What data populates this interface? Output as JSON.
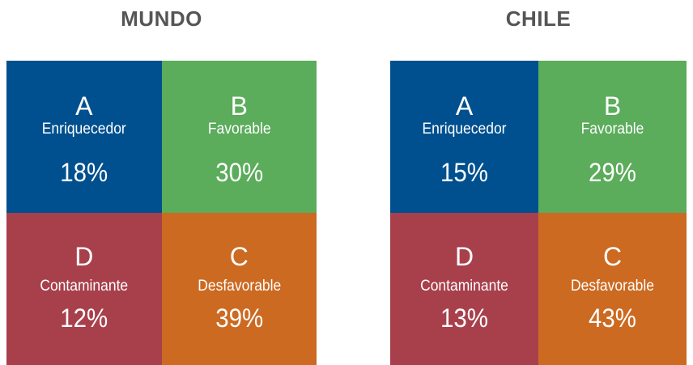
{
  "panels": [
    {
      "title": "MUNDO",
      "cells": [
        {
          "letter": "A",
          "label": "Enriquecedor",
          "value": "18%",
          "color": "#00508f"
        },
        {
          "letter": "B",
          "label": "Favorable",
          "value": "30%",
          "color": "#5bac5b"
        },
        {
          "letter": "D",
          "label": "Contaminante",
          "value": "12%",
          "color": "#a8404c"
        },
        {
          "letter": "C",
          "label": "Desfavorable",
          "value": "39%",
          "color": "#cc6a21"
        }
      ]
    },
    {
      "title": "CHILE",
      "cells": [
        {
          "letter": "A",
          "label": "Enriquecedor",
          "value": "15%",
          "color": "#00508f"
        },
        {
          "letter": "B",
          "label": "Favorable",
          "value": "29%",
          "color": "#5bac5b"
        },
        {
          "letter": "D",
          "label": "Contaminante",
          "value": "13%",
          "color": "#a8404c"
        },
        {
          "letter": "C",
          "label": "Desfavorable",
          "value": "43%",
          "color": "#cc6a21"
        }
      ]
    }
  ]
}
